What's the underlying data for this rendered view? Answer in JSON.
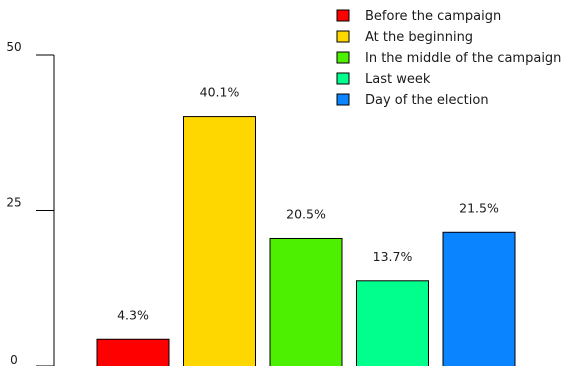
{
  "chart_data": {
    "type": "bar",
    "categories": [
      "Before the campaign",
      "At the beginning",
      "In the middle of the campaign",
      "Last week",
      "Day of the election"
    ],
    "values": [
      4.3,
      40.1,
      20.5,
      13.7,
      21.5
    ],
    "data_labels": [
      "4.3%",
      "40.1%",
      "20.5%",
      "13.7%",
      "21.5%"
    ],
    "colors": [
      "#ff0000",
      "#ffd700",
      "#4cf000",
      "#00ff8c",
      "#0a84ff"
    ],
    "ylim": [
      0,
      50
    ],
    "yticks": [
      0,
      25,
      50
    ],
    "ytick_labels": [
      "0",
      "25",
      "50"
    ],
    "title": "",
    "xlabel": "",
    "ylabel": "",
    "grid": false,
    "legend": {
      "placement": "top-right",
      "entries": [
        "Before the campaign",
        "At the beginning",
        "In the middle of the campaign",
        "Last week",
        "Day of the election"
      ]
    }
  }
}
